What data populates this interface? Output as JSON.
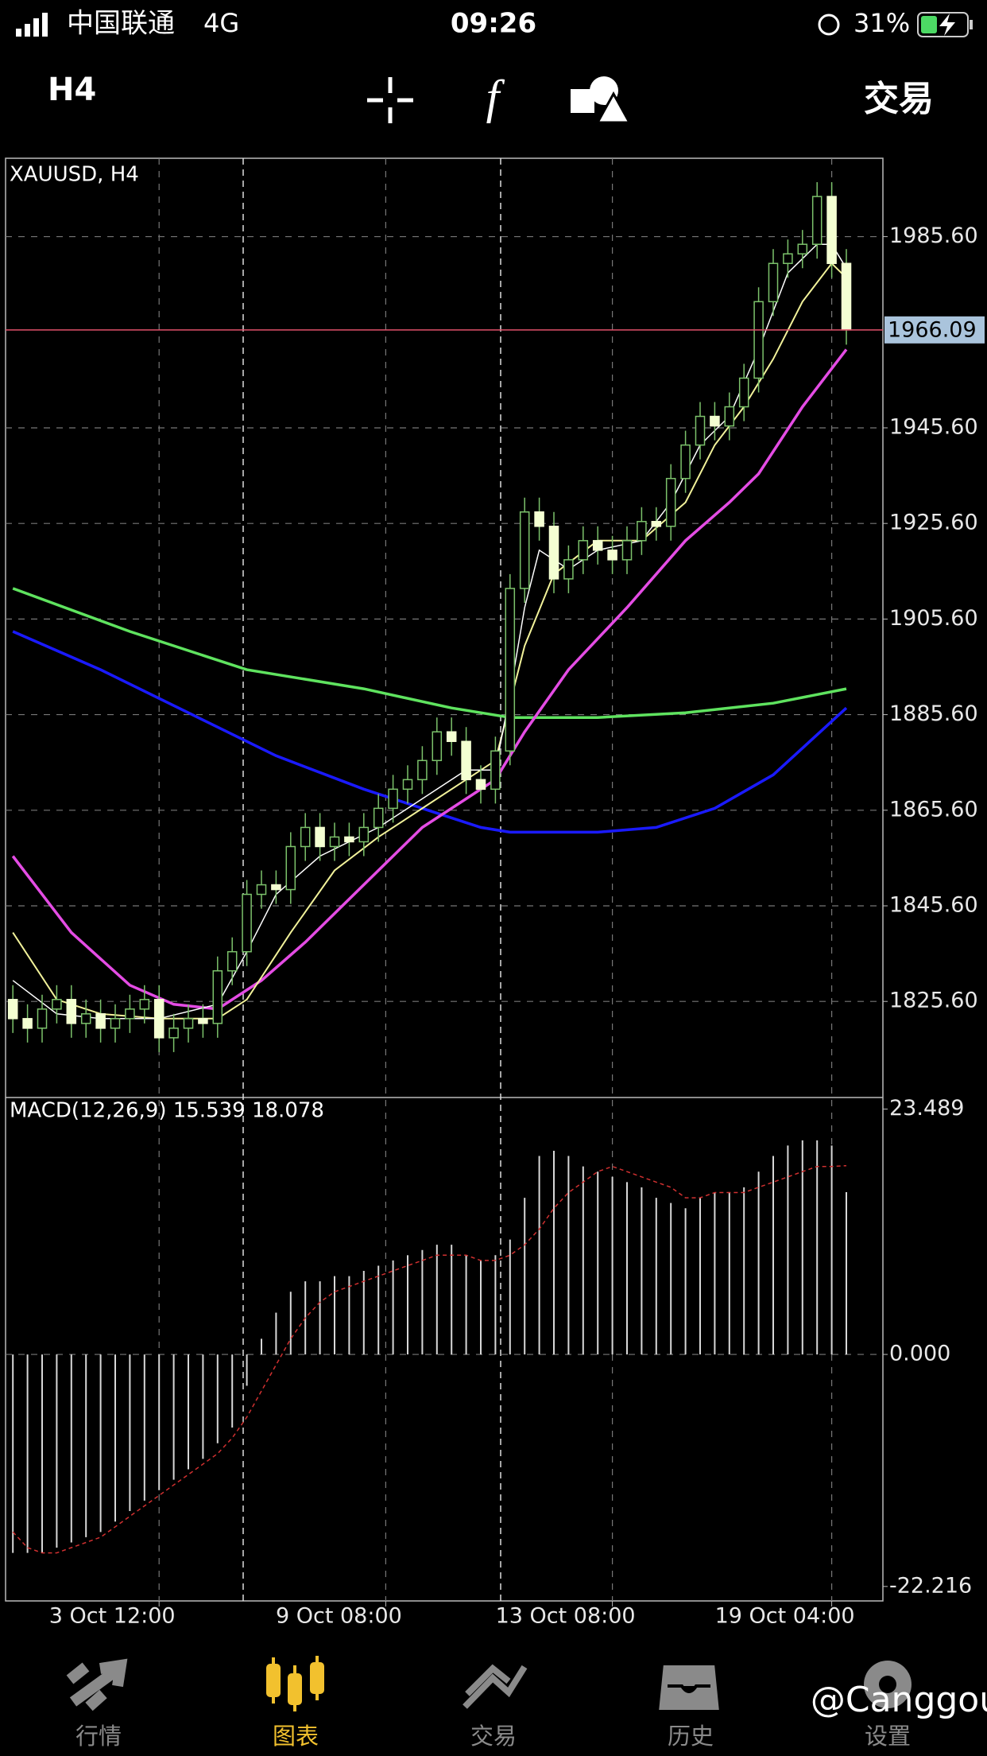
{
  "status_bar": {
    "carrier": "中国联通",
    "network": "4G",
    "time": "09:26",
    "battery": "31%"
  },
  "toolbar": {
    "timeframe": "H4",
    "trade": "交易"
  },
  "chart_data": [
    {
      "type": "candlestick",
      "title": "XAUUSD, H4",
      "open": [
        1826,
        1822,
        1820,
        1824,
        1826,
        1821,
        1823,
        1820,
        1822,
        1824,
        1826,
        1818,
        1820,
        1822,
        1821,
        1832,
        1836,
        1848,
        1850,
        1849,
        1858,
        1862,
        1858,
        1860,
        1859,
        1862,
        1866,
        1870,
        1872,
        1876,
        1882,
        1880,
        1872,
        1870,
        1878,
        1912,
        1928,
        1925,
        1914,
        1918,
        1922,
        1920,
        1918,
        1922,
        1926,
        1925,
        1935,
        1942,
        1948,
        1946,
        1950,
        1956,
        1972,
        1980,
        1982,
        1984,
        1994,
        1980
      ],
      "high": [
        1829,
        1825,
        1827,
        1829,
        1829,
        1826,
        1826,
        1825,
        1827,
        1829,
        1829,
        1823,
        1825,
        1825,
        1835,
        1839,
        1851,
        1853,
        1853,
        1861,
        1865,
        1865,
        1863,
        1863,
        1865,
        1869,
        1873,
        1875,
        1879,
        1885,
        1885,
        1883,
        1875,
        1881,
        1915,
        1931,
        1931,
        1928,
        1921,
        1925,
        1925,
        1923,
        1925,
        1929,
        1929,
        1938,
        1945,
        1951,
        1951,
        1953,
        1959,
        1975,
        1983,
        1985,
        1987,
        1997,
        1997,
        1983
      ],
      "low": [
        1819,
        1817,
        1817,
        1821,
        1818,
        1818,
        1817,
        1817,
        1819,
        1821,
        1815,
        1815,
        1817,
        1818,
        1818,
        1829,
        1833,
        1845,
        1846,
        1846,
        1855,
        1855,
        1855,
        1856,
        1856,
        1859,
        1863,
        1867,
        1869,
        1873,
        1877,
        1869,
        1867,
        1867,
        1875,
        1909,
        1922,
        1911,
        1911,
        1915,
        1917,
        1915,
        1915,
        1919,
        1922,
        1922,
        1932,
        1939,
        1943,
        1943,
        1947,
        1953,
        1969,
        1977,
        1979,
        1981,
        1977,
        1963
      ],
      "close": [
        1822,
        1820,
        1824,
        1826,
        1821,
        1823,
        1820,
        1822,
        1824,
        1826,
        1818,
        1820,
        1822,
        1821,
        1832,
        1836,
        1848,
        1850,
        1849,
        1858,
        1862,
        1858,
        1860,
        1859,
        1862,
        1866,
        1870,
        1872,
        1876,
        1882,
        1880,
        1872,
        1870,
        1878,
        1912,
        1928,
        1925,
        1914,
        1918,
        1922,
        1920,
        1918,
        1922,
        1926,
        1925,
        1935,
        1942,
        1948,
        1946,
        1950,
        1956,
        1972,
        1980,
        1982,
        1984,
        1994,
        1980,
        1966.09
      ],
      "up_color": "#7cc26b",
      "down_color": "#f4ffd2",
      "xlim": [
        -0.5,
        59.5
      ],
      "xticks": [
        {
          "value": 10,
          "label": "3 Oct 12:00"
        },
        {
          "value": 25.5,
          "label": "9 Oct 08:00"
        },
        {
          "value": 41,
          "label": "13 Oct 08:00"
        },
        {
          "value": 56,
          "label": "19 Oct 04:00"
        }
      ],
      "ylim": [
        1805.5,
        2002.0
      ],
      "yticks": [
        {
          "value": 1985.6,
          "label": "1985.60"
        },
        {
          "value": 1945.6,
          "label": "1945.60"
        },
        {
          "value": 1925.6,
          "label": "1925.60"
        },
        {
          "value": 1905.6,
          "label": "1905.60"
        },
        {
          "value": 1885.6,
          "label": "1885.60"
        },
        {
          "value": 1865.6,
          "label": "1865.60"
        },
        {
          "value": 1845.6,
          "label": "1845.60"
        },
        {
          "value": 1825.6,
          "label": "1825.60"
        }
      ],
      "current_price": 1966.09,
      "grid": true,
      "series": [
        {
          "color": "#5fe35f",
          "x": [
            0,
            8,
            16,
            24,
            30,
            34,
            40,
            46,
            52,
            57
          ],
          "values": [
            1912,
            1903,
            1895,
            1891,
            1887,
            1885,
            1885,
            1886,
            1888,
            1891
          ]
        },
        {
          "color": "#1a1aff",
          "x": [
            0,
            6,
            12,
            18,
            24,
            28,
            32,
            34,
            40,
            44,
            48,
            52,
            57
          ],
          "values": [
            1903,
            1895,
            1886,
            1877,
            1870,
            1866,
            1862,
            1861,
            1861,
            1862,
            1866,
            1873,
            1887
          ]
        },
        {
          "color": "#e44ce4",
          "x": [
            0,
            4,
            8,
            11,
            14,
            17,
            20,
            24,
            28,
            31,
            33,
            35,
            38,
            42,
            46,
            49,
            51,
            54,
            57
          ],
          "values": [
            1856,
            1840,
            1829,
            1825,
            1824,
            1830,
            1838,
            1850,
            1862,
            1868,
            1872,
            1882,
            1895,
            1908,
            1922,
            1930,
            1936,
            1950,
            1962
          ]
        },
        {
          "color": "#f2f29a",
          "x": [
            0,
            3,
            6,
            10,
            14,
            16,
            19,
            22,
            25,
            28,
            31,
            33,
            35,
            37,
            40,
            43,
            46,
            48,
            50,
            52,
            54,
            56,
            57
          ],
          "values": [
            1840,
            1826,
            1823,
            1822,
            1822,
            1826,
            1840,
            1853,
            1860,
            1866,
            1872,
            1876,
            1900,
            1915,
            1922,
            1922,
            1930,
            1942,
            1950,
            1960,
            1972,
            1980,
            1977
          ]
        },
        {
          "color": "#ffffff",
          "x": [
            0,
            3,
            6,
            10,
            14,
            16,
            18,
            21,
            25,
            28,
            31,
            33,
            34,
            35,
            36,
            38,
            40,
            43,
            45,
            47,
            49,
            51,
            53,
            55,
            56,
            57
          ],
          "values": [
            1830,
            1823,
            1822,
            1822,
            1825,
            1836,
            1848,
            1856,
            1862,
            1868,
            1874,
            1874,
            1890,
            1908,
            1920,
            1916,
            1920,
            1922,
            1930,
            1942,
            1948,
            1962,
            1978,
            1984,
            1984,
            1979
          ]
        }
      ]
    },
    {
      "type": "macd",
      "title": "MACD(12,26,9) 15.539 18.078",
      "xlim": [
        -0.5,
        59.5
      ],
      "ylim": [
        -23.6,
        24.6
      ],
      "yticks": [
        23.489,
        {
          "value": 0,
          "label": "0.000"
        },
        -22.216
      ],
      "values": [
        -19,
        -19,
        -19,
        -18.5,
        -18,
        -17.5,
        -17,
        -16,
        -15,
        -14,
        -13,
        -12,
        -11,
        -10,
        -8.5,
        -7,
        -3,
        1.5,
        4,
        6,
        7,
        7,
        7.5,
        7.5,
        8,
        8.5,
        9,
        9.5,
        10,
        10.5,
        10.5,
        9.5,
        9,
        9.5,
        11,
        15,
        19,
        19.5,
        19,
        18,
        17.5,
        17,
        16.5,
        16,
        15,
        14.5,
        14,
        15,
        15.5,
        15.5,
        16,
        17.5,
        19,
        20,
        20.5,
        20.5,
        20,
        15.539
      ],
      "signal": [
        -17,
        -18.5,
        -19,
        -19,
        -18.5,
        -18,
        -17.5,
        -16.5,
        -15.5,
        -14.5,
        -13.5,
        -12.5,
        -11.5,
        -10.5,
        -9.5,
        -8,
        -6,
        -3.5,
        -1,
        1.5,
        3.5,
        5,
        6,
        6.5,
        7,
        7.5,
        8,
        8.5,
        9,
        9.5,
        9.5,
        9.5,
        9,
        9,
        9.5,
        10.5,
        12,
        14,
        15.5,
        16.5,
        17.5,
        18,
        17.5,
        17,
        16.5,
        16,
        15,
        15,
        15.5,
        15.5,
        15.5,
        16,
        16.5,
        17,
        17.5,
        18,
        18,
        18.078
      ],
      "color": "#d8d8d8",
      "signal_color": "#d03030"
    }
  ],
  "tabs": [
    "行情",
    "图表",
    "交易",
    "历史",
    "设置"
  ],
  "active_tab": 1,
  "watermark": "@Canggou"
}
